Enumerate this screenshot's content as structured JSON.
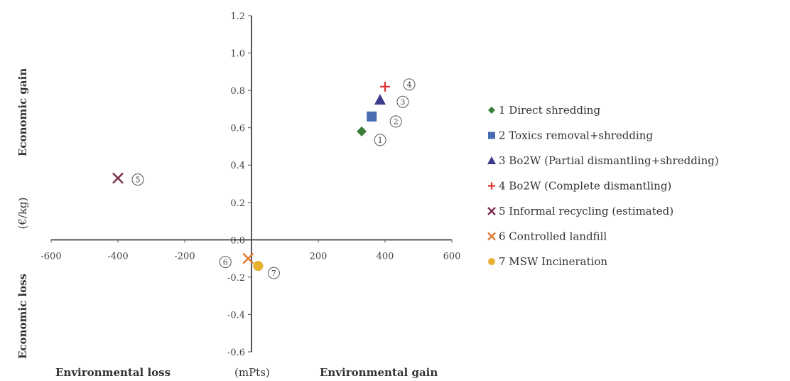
{
  "chart_data": {
    "type": "scatter",
    "xlabel_left": "Environmental loss",
    "xlabel_unit": "(mPts)",
    "xlabel_right": "Environmental gain",
    "ylabel_top": "Economic gain",
    "ylabel_unit": "(€/kg)",
    "ylabel_bottom": "Economic loss",
    "xlim": [
      -600,
      600
    ],
    "ylim": [
      -0.6,
      1.2
    ],
    "x_ticks": [
      -600,
      -400,
      -200,
      200,
      400,
      600
    ],
    "x_tick_labels": [
      "-600",
      "-400",
      "-200",
      "200",
      "400",
      "600"
    ],
    "y_ticks": [
      1.2,
      1.0,
      0.8,
      0.6,
      0.4,
      0.2,
      0.0,
      -0.2,
      -0.4,
      -0.6
    ],
    "y_tick_labels": [
      "1.2",
      "1.0",
      "0.8",
      "0.6",
      "0.4",
      "0.2",
      "0.0",
      "-0.2",
      "-0.4",
      "-0.6"
    ],
    "grid": false,
    "legend_position": "right",
    "series": [
      {
        "name": "1 Direct shredding",
        "marker": "diamond",
        "color": "#3a7d3a",
        "callout": "1",
        "x": 330,
        "y": 0.58
      },
      {
        "name": "2 Toxics removal+shredding",
        "marker": "square",
        "color": "#4a6cb3",
        "callout": "2",
        "x": 360,
        "y": 0.66
      },
      {
        "name": "3 Bo2W (Partial dismantling+shredding)",
        "marker": "triangle",
        "color": "#3b3a8c",
        "callout": "3",
        "x": 385,
        "y": 0.75
      },
      {
        "name": "4 Bo2W (Complete dismantling)",
        "marker": "plus",
        "color": "#e03030",
        "callout": "4",
        "x": 400,
        "y": 0.82
      },
      {
        "name": "5 Informal recycling (estimated)",
        "marker": "x",
        "color": "#7a2a4a",
        "callout": "5",
        "x": -400,
        "y": 0.33
      },
      {
        "name": "6 Controlled landfill",
        "marker": "x",
        "color": "#e07830",
        "callout": "6",
        "x": -10,
        "y": -0.1
      },
      {
        "name": "7 MSW Incineration",
        "marker": "circle",
        "color": "#e8b030",
        "callout": "7",
        "x": 20,
        "y": -0.14
      }
    ]
  }
}
